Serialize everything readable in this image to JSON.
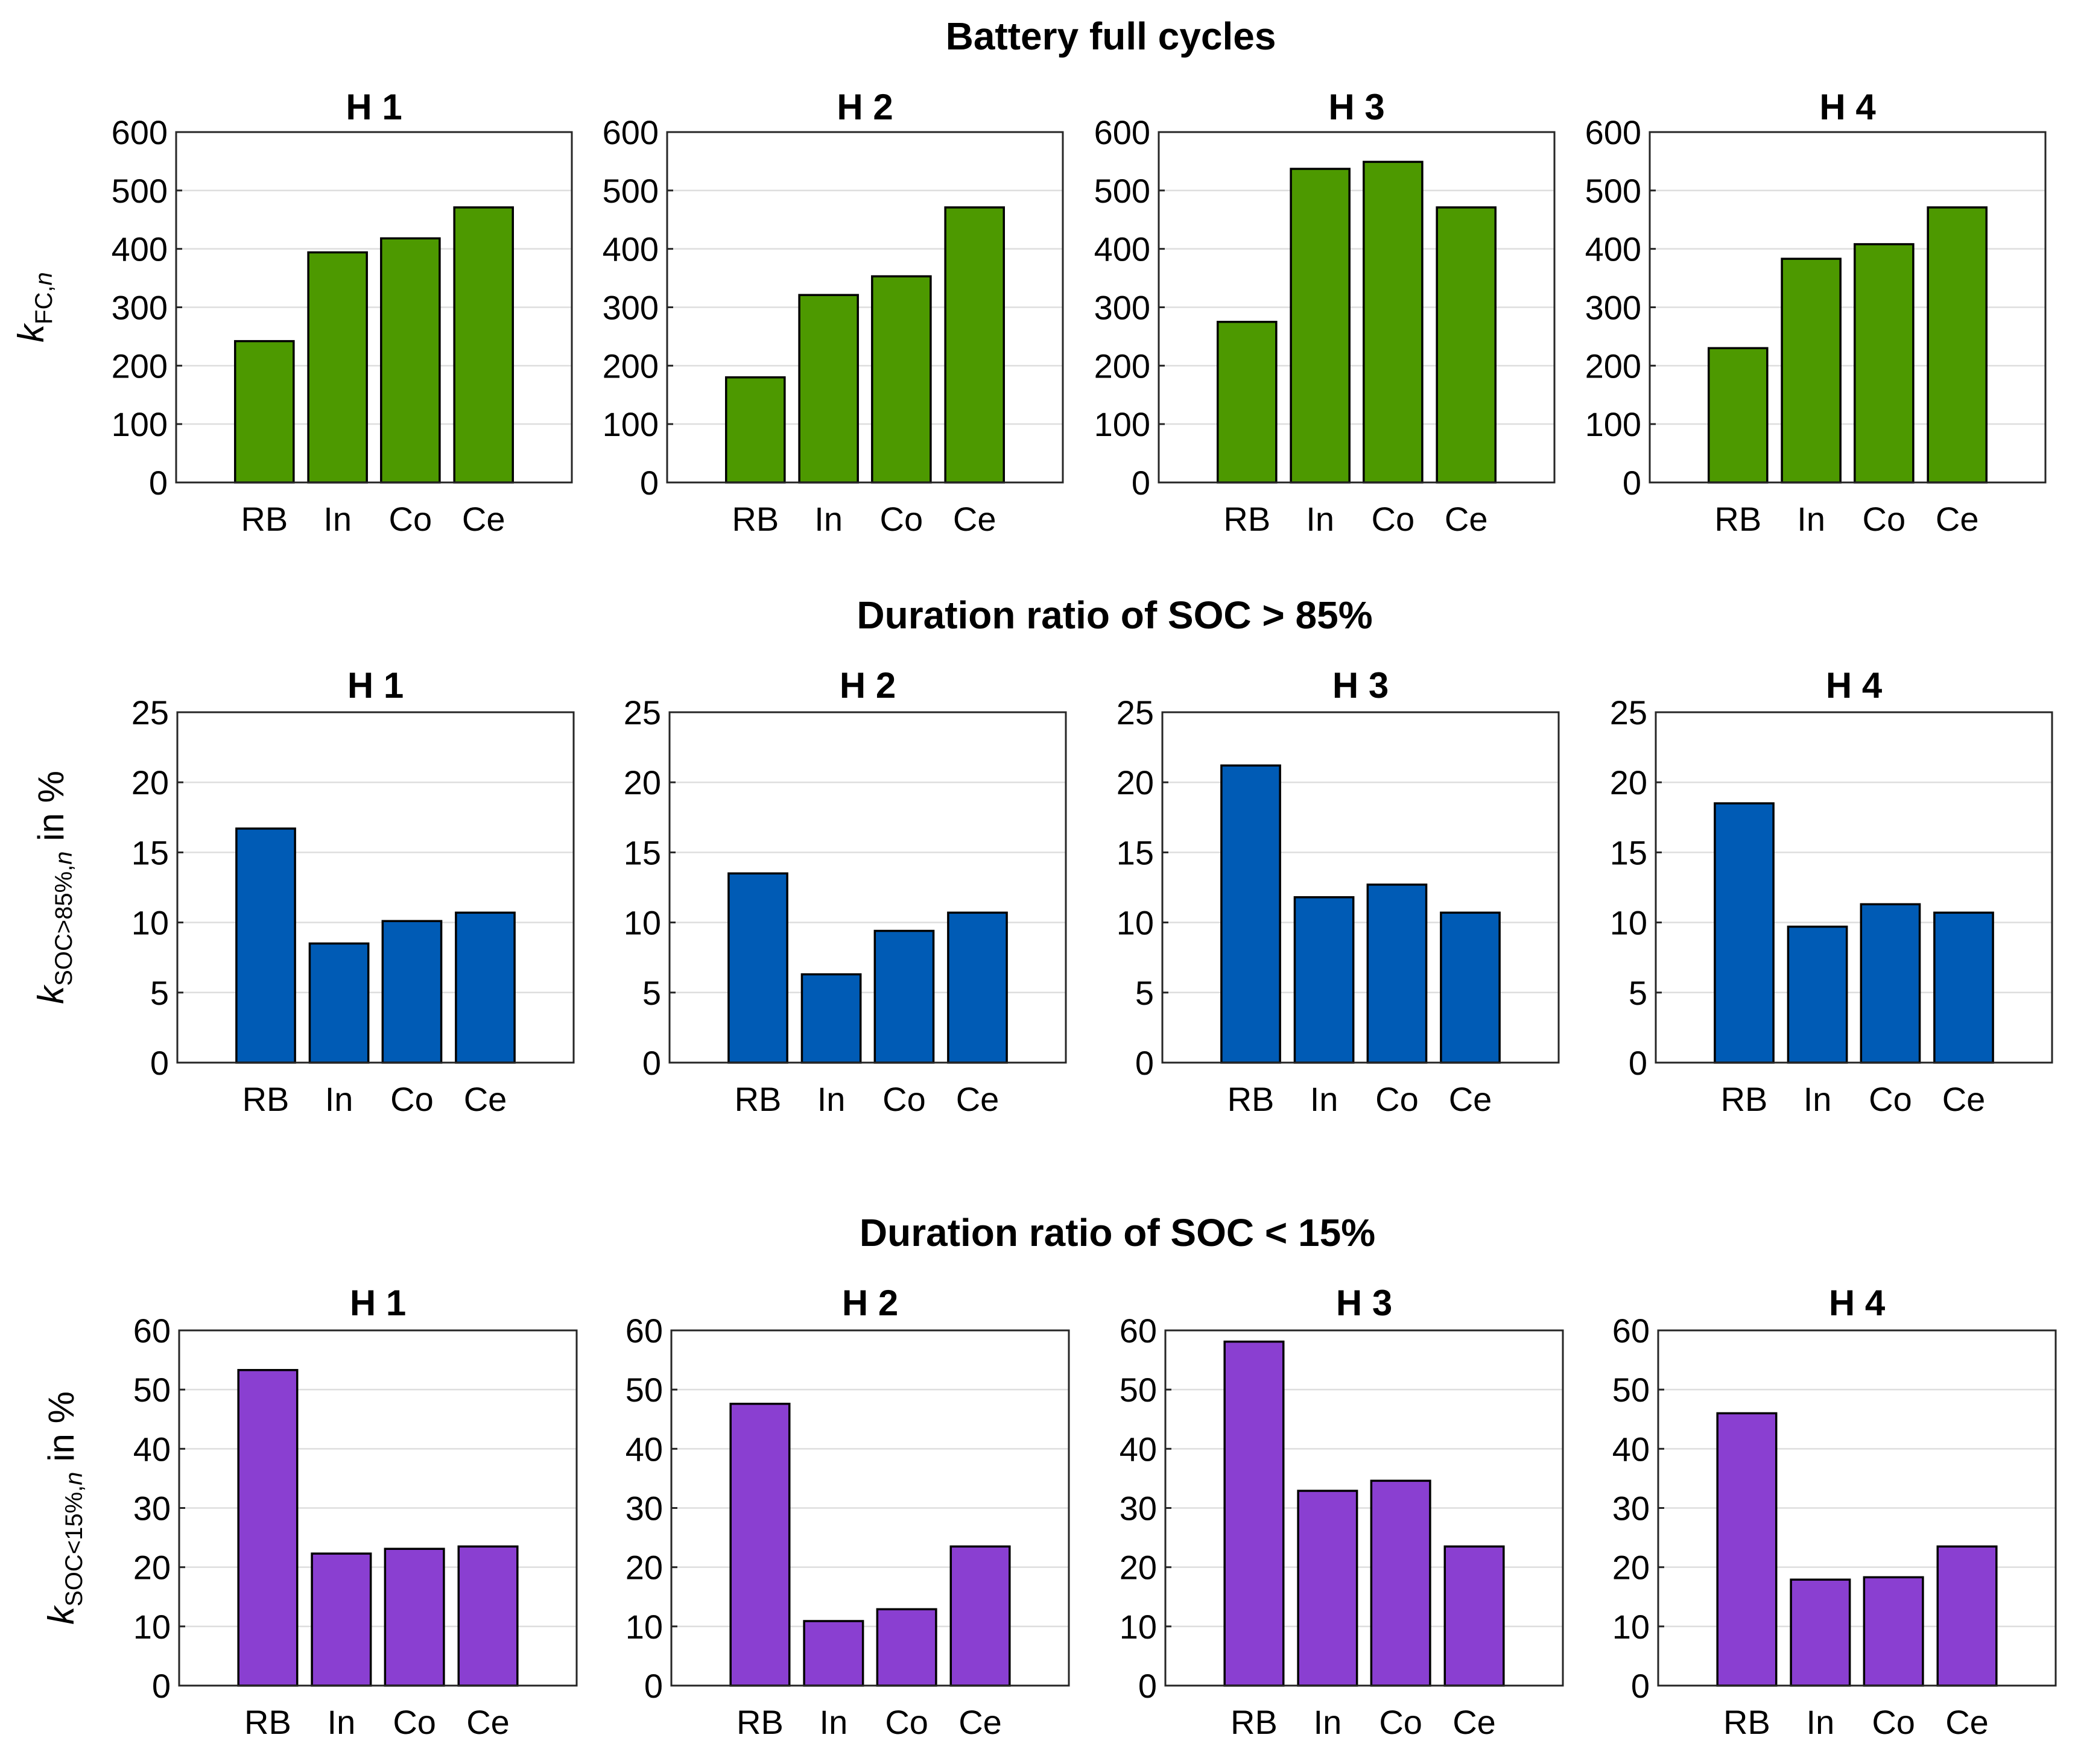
{
  "chart_data": [
    {
      "type": "bar",
      "title": "Battery full cycles",
      "ylabel": {
        "base": "k",
        "subscript": "FC,",
        "subscript_italic": "n",
        "suffix": ""
      },
      "ylim": [
        0,
        600
      ],
      "yticks": [
        0,
        100,
        200,
        300,
        400,
        500,
        600
      ],
      "grid": true,
      "color": "#4d9900",
      "categories": [
        "RB",
        "In",
        "Co",
        "Ce"
      ],
      "panels": [
        {
          "title": "H 1",
          "values": [
            242,
            394,
            418,
            471
          ]
        },
        {
          "title": "H 2",
          "values": [
            180,
            321,
            353,
            471
          ]
        },
        {
          "title": "H 3",
          "values": [
            275,
            537,
            549,
            471
          ]
        },
        {
          "title": "H 4",
          "values": [
            230,
            383,
            408,
            471
          ]
        }
      ]
    },
    {
      "type": "bar",
      "title": "Duration ratio of SOC > 85%",
      "ylabel": {
        "base": "k",
        "subscript": "SOC>85%,",
        "subscript_italic": "n",
        "suffix": " in %"
      },
      "ylim": [
        0,
        25
      ],
      "yticks": [
        0,
        5,
        10,
        15,
        20,
        25
      ],
      "grid": true,
      "color": "#005bb5",
      "categories": [
        "RB",
        "In",
        "Co",
        "Ce"
      ],
      "panels": [
        {
          "title": "H 1",
          "values": [
            16.7,
            8.5,
            10.1,
            10.7
          ]
        },
        {
          "title": "H 2",
          "values": [
            13.5,
            6.3,
            9.4,
            10.7
          ]
        },
        {
          "title": "H 3",
          "values": [
            21.2,
            11.8,
            12.7,
            10.7
          ]
        },
        {
          "title": "H 4",
          "values": [
            18.5,
            9.7,
            11.3,
            10.7
          ]
        }
      ]
    },
    {
      "type": "bar",
      "title": "Duration ratio of SOC < 15%",
      "ylabel": {
        "base": "k",
        "subscript": "SOC<15%,",
        "subscript_italic": "n",
        "suffix": " in %"
      },
      "ylim": [
        0,
        60
      ],
      "yticks": [
        0,
        10,
        20,
        30,
        40,
        50,
        60
      ],
      "grid": true,
      "color": "#8a3fd1",
      "categories": [
        "RB",
        "In",
        "Co",
        "Ce"
      ],
      "panels": [
        {
          "title": "H 1",
          "values": [
            53.3,
            22.3,
            23.1,
            23.5
          ]
        },
        {
          "title": "H 2",
          "values": [
            47.6,
            10.9,
            12.9,
            23.5
          ]
        },
        {
          "title": "H 3",
          "values": [
            58.1,
            32.9,
            34.6,
            23.5
          ]
        },
        {
          "title": "H 4",
          "values": [
            46.0,
            17.9,
            18.3,
            23.5
          ]
        }
      ]
    }
  ]
}
